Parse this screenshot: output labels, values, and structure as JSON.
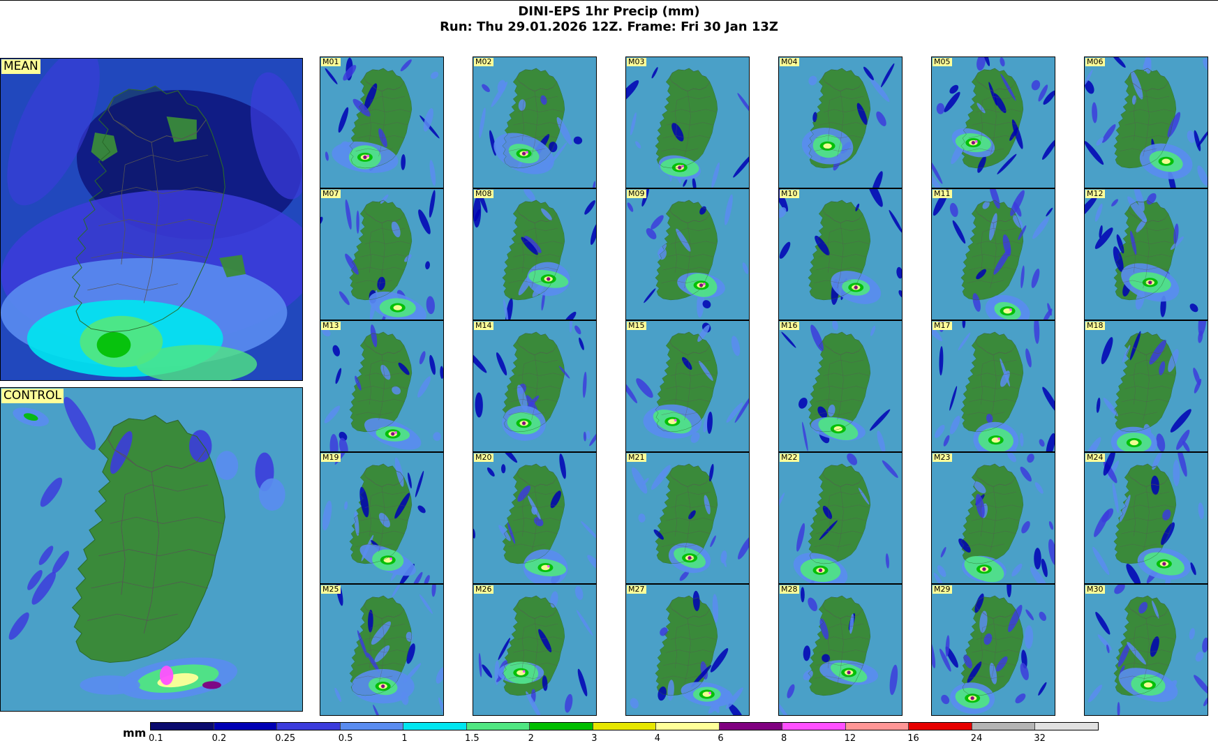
{
  "header": {
    "title": "DINI-EPS 1hr Precip (mm)",
    "subtitle": "Run: Thu 29.01.2026 12Z.  Frame: Fri 30 Jan 13Z"
  },
  "panels": {
    "mean_label": "MEAN",
    "control_label": "CONTROL",
    "members": [
      "M01",
      "M02",
      "M03",
      "M04",
      "M05",
      "M06",
      "M07",
      "M08",
      "M09",
      "M10",
      "M11",
      "M12",
      "M13",
      "M14",
      "M15",
      "M16",
      "M17",
      "M18",
      "M19",
      "M20",
      "M21",
      "M22",
      "M23",
      "M24",
      "M25",
      "M26",
      "M27",
      "M28",
      "M29",
      "M30"
    ]
  },
  "colorbar": {
    "unit": "mm",
    "ticks": [
      "0.1",
      "0.2",
      "0.25",
      "0.5",
      "1",
      "1.5",
      "2",
      "3",
      "4",
      "6",
      "8",
      "12",
      "16",
      "24",
      "32"
    ],
    "colors": [
      "#0a0a6e",
      "#0000b4",
      "#3c3cdc",
      "#5a8cf0",
      "#00e6f0",
      "#50e682",
      "#00be00",
      "#e6e600",
      "#ffff99",
      "#800080",
      "#ff50ff",
      "#ff9696",
      "#e60000",
      "#b4b4b4",
      "#e1e1e1"
    ]
  },
  "colors": {
    "sea": "#4aa0c8",
    "land": "#3a8a3a",
    "border": "#555555",
    "label_bg": "#ffff99"
  }
}
